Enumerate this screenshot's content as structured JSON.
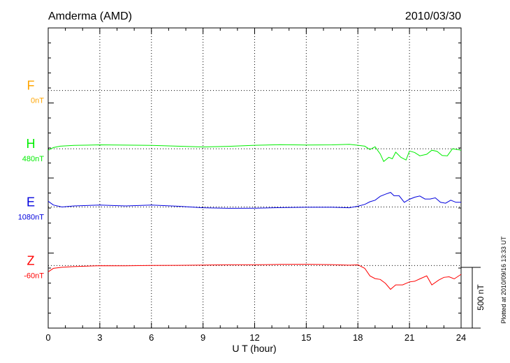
{
  "chart_data": {
    "type": "line",
    "title": "Amderma (AMD)",
    "date": "2010/03/30",
    "xlabel": "U T (hour)",
    "xlim": [
      0,
      24
    ],
    "xticks": [
      0,
      3,
      6,
      9,
      12,
      15,
      18,
      21,
      24
    ],
    "xtick_labels": [
      "0",
      "3",
      "6",
      "9",
      "12",
      "15",
      "18",
      "21",
      "24"
    ],
    "ylim_nT": [
      -1000,
      1000
    ],
    "scale_bar": {
      "label": "500 nT",
      "value_nT": 500
    },
    "footnote": "Plotted at 2010/09/16 13:33 UT",
    "grid": true,
    "series": [
      {
        "name": "F",
        "baseline_label": "0nT",
        "color": "#ffa500",
        "baseline_nT": 583,
        "x": [],
        "y": []
      },
      {
        "name": "H",
        "baseline_label": "480nT",
        "color": "#00ee00",
        "baseline_nT": 195,
        "x": [
          0,
          0.3,
          0.7,
          1.5,
          3,
          4.5,
          6,
          7.5,
          9,
          10.5,
          12,
          13.5,
          15,
          16.5,
          17.5,
          18,
          18.4,
          18.7,
          19,
          19.3,
          19.5,
          19.8,
          20,
          20.2,
          20.5,
          20.8,
          21,
          21.3,
          21.6,
          22,
          22.3,
          22.6,
          22.9,
          23.2,
          23.5,
          23.8,
          24
        ],
        "y": [
          185,
          203,
          212,
          217,
          221,
          219,
          217,
          212,
          207,
          211,
          218,
          222,
          220,
          221,
          224,
          218,
          212,
          190,
          208,
          160,
          110,
          138,
          128,
          172,
          138,
          120,
          180,
          170,
          148,
          158,
          185,
          178,
          150,
          148,
          195,
          190,
          185
        ]
      },
      {
        "name": "E",
        "baseline_label": "1080nT",
        "color": "#0000dd",
        "baseline_nT": -193,
        "x": [
          0,
          0.3,
          0.8,
          1.5,
          3,
          4.5,
          6,
          7.5,
          9,
          10.5,
          12,
          13.5,
          15,
          16.5,
          17.5,
          18,
          18.4,
          18.7,
          19,
          19.3,
          19.6,
          19.9,
          20.1,
          20.4,
          20.7,
          21,
          21.3,
          21.6,
          21.9,
          22.2,
          22.5,
          22.8,
          23.1,
          23.4,
          23.7,
          24
        ],
        "y": [
          -155,
          -180,
          -193,
          -186,
          -180,
          -186,
          -180,
          -188,
          -198,
          -202,
          -201,
          -197,
          -195,
          -195,
          -198,
          -188,
          -176,
          -158,
          -148,
          -122,
          -108,
          -96,
          -118,
          -118,
          -162,
          -142,
          -128,
          -120,
          -140,
          -140,
          -132,
          -162,
          -168,
          -148,
          -162,
          -162
        ]
      },
      {
        "name": "Z",
        "baseline_label": "-60nT",
        "color": "#ff0000",
        "baseline_nT": -583,
        "x": [
          0,
          0.3,
          0.8,
          1.5,
          3,
          4.5,
          6,
          7.5,
          9,
          10.5,
          12,
          13.5,
          15,
          16.5,
          17.5,
          18,
          18.4,
          18.7,
          19,
          19.3,
          19.6,
          19.9,
          20.2,
          20.6,
          21,
          21.3,
          21.6,
          22,
          22.3,
          22.7,
          23,
          23.3,
          23.6,
          24
        ],
        "y": [
          -625,
          -602,
          -595,
          -590,
          -584,
          -585,
          -583,
          -582,
          -580,
          -578,
          -578,
          -576,
          -575,
          -577,
          -581,
          -578,
          -602,
          -652,
          -670,
          -676,
          -702,
          -742,
          -712,
          -712,
          -692,
          -688,
          -672,
          -652,
          -712,
          -680,
          -662,
          -658,
          -672,
          -642
        ]
      }
    ]
  }
}
